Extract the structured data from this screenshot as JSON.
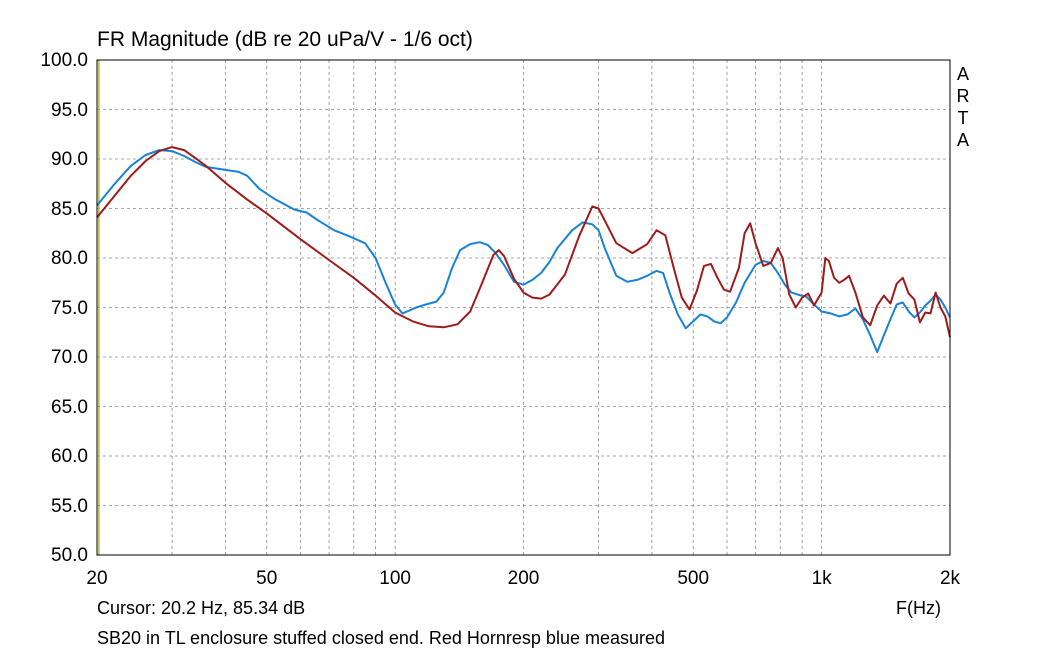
{
  "title": "FR Magnitude (dB re 20 uPa/V - 1/6 oct)",
  "brand_letters": [
    "A",
    "R",
    "T",
    "A"
  ],
  "cursor_text": "Cursor: 20.2 Hz, 85.34 dB",
  "x_unit": "F(Hz)",
  "note": "SB20 in TL enclosure stuffed closed end. Red Hornresp blue measured",
  "chart_data": {
    "type": "line",
    "x_scale": "log",
    "xlim": [
      20,
      2000
    ],
    "ylim": [
      50,
      100
    ],
    "grid": true,
    "y_ticks": [
      {
        "value": 100,
        "label": "100.0"
      },
      {
        "value": 95,
        "label": "95.0"
      },
      {
        "value": 90,
        "label": "90.0"
      },
      {
        "value": 85,
        "label": "85.0"
      },
      {
        "value": 80,
        "label": "80.0"
      },
      {
        "value": 75,
        "label": "75.0"
      },
      {
        "value": 70,
        "label": "70.0"
      },
      {
        "value": 65,
        "label": "65.0"
      },
      {
        "value": 60,
        "label": "60.0"
      },
      {
        "value": 55,
        "label": "55.0"
      },
      {
        "value": 50,
        "label": "50.0"
      }
    ],
    "x_ticks": [
      {
        "value": 20,
        "label": "20"
      },
      {
        "value": 50,
        "label": "50"
      },
      {
        "value": 100,
        "label": "100"
      },
      {
        "value": 200,
        "label": "200"
      },
      {
        "value": 500,
        "label": "500"
      },
      {
        "value": 1000,
        "label": "1k"
      },
      {
        "value": 2000,
        "label": "2k"
      }
    ],
    "colors": {
      "measured": "#1a82d6",
      "hornresp": "#9e1b1b",
      "grid": "#8a8a8a",
      "cursor": "#b5b54a"
    },
    "cursor_x": 20.2,
    "series": [
      {
        "color": "#1a82d6",
        "x": [
          20,
          22,
          24,
          26,
          28,
          30,
          32,
          34,
          36,
          40,
          43,
          45,
          48,
          52,
          58,
          62,
          66,
          72,
          78,
          85,
          90,
          95,
          100,
          104,
          108,
          112,
          118,
          125,
          130,
          136,
          142,
          150,
          158,
          165,
          172,
          180,
          190,
          200,
          210,
          220,
          230,
          240,
          260,
          275,
          290,
          300,
          310,
          330,
          350,
          370,
          390,
          410,
          425,
          440,
          460,
          480,
          500,
          520,
          540,
          560,
          580,
          600,
          630,
          660,
          700,
          730,
          760,
          790,
          820,
          850,
          880,
          920,
          960,
          1000,
          1050,
          1100,
          1150,
          1200,
          1250,
          1300,
          1350,
          1400,
          1450,
          1500,
          1550,
          1600,
          1650,
          1700,
          1750,
          1800,
          1850,
          1900,
          1950,
          2000
        ],
        "y": [
          85.3,
          87.5,
          89.3,
          90.4,
          90.9,
          90.8,
          90.3,
          89.7,
          89.2,
          88.9,
          88.7,
          88.3,
          87.0,
          86.0,
          84.9,
          84.6,
          83.8,
          82.8,
          82.2,
          81.5,
          80.0,
          77.5,
          75.3,
          74.4,
          74.7,
          75.0,
          75.3,
          75.6,
          76.5,
          79.0,
          80.8,
          81.4,
          81.6,
          81.3,
          80.5,
          79.3,
          77.6,
          77.3,
          77.8,
          78.5,
          79.6,
          81.0,
          82.8,
          83.6,
          83.4,
          82.8,
          81.0,
          78.2,
          77.6,
          77.8,
          78.2,
          78.7,
          78.5,
          76.5,
          74.3,
          72.9,
          73.6,
          74.3,
          74.1,
          73.6,
          73.4,
          74.0,
          75.5,
          77.5,
          79.3,
          79.7,
          79.5,
          78.5,
          77.3,
          76.5,
          76.3,
          76.1,
          75.3,
          74.6,
          74.4,
          74.1,
          74.3,
          74.9,
          73.8,
          72.2,
          70.5,
          72.2,
          73.8,
          75.3,
          75.5,
          74.6,
          74.0,
          74.5,
          75.2,
          75.7,
          76.3,
          75.8,
          75.0,
          74.0
        ]
      },
      {
        "color": "#9e1b1b",
        "x": [
          20,
          22,
          24,
          26,
          28,
          30,
          32,
          34,
          36,
          40,
          45,
          50,
          60,
          70,
          80,
          90,
          100,
          110,
          120,
          130,
          140,
          150,
          160,
          170,
          175,
          180,
          190,
          200,
          210,
          220,
          230,
          250,
          270,
          290,
          300,
          310,
          330,
          360,
          390,
          410,
          430,
          450,
          470,
          490,
          510,
          530,
          550,
          570,
          590,
          610,
          640,
          660,
          680,
          700,
          730,
          760,
          790,
          810,
          840,
          870,
          900,
          930,
          960,
          1000,
          1020,
          1040,
          1070,
          1100,
          1130,
          1160,
          1200,
          1250,
          1300,
          1350,
          1400,
          1450,
          1500,
          1550,
          1600,
          1650,
          1700,
          1750,
          1800,
          1850,
          1900,
          1950,
          2000
        ],
        "y": [
          84.1,
          86.3,
          88.3,
          89.8,
          90.8,
          91.2,
          90.9,
          90.1,
          89.3,
          87.6,
          85.9,
          84.5,
          81.9,
          79.8,
          78.0,
          76.2,
          74.5,
          73.6,
          73.1,
          73.0,
          73.3,
          74.6,
          77.5,
          80.3,
          80.8,
          80.2,
          77.9,
          76.5,
          76.0,
          75.9,
          76.3,
          78.3,
          82.2,
          85.2,
          85.0,
          83.8,
          81.5,
          80.5,
          81.4,
          82.8,
          82.3,
          79.0,
          76.0,
          74.8,
          76.7,
          79.2,
          79.4,
          78.0,
          76.8,
          76.6,
          79.0,
          82.5,
          83.5,
          81.5,
          79.2,
          79.5,
          81.0,
          80.0,
          76.3,
          75.0,
          76.0,
          76.4,
          75.2,
          76.5,
          80.0,
          79.7,
          78.0,
          77.5,
          77.8,
          78.2,
          76.5,
          74.0,
          73.2,
          75.2,
          76.2,
          75.4,
          77.4,
          78.0,
          76.4,
          75.8,
          73.5,
          74.5,
          74.4,
          76.5,
          75.0,
          74.1,
          72.0
        ]
      }
    ]
  }
}
